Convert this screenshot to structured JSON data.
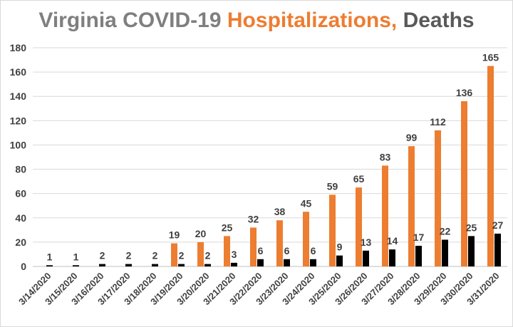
{
  "chart_data": {
    "type": "bar",
    "title_parts": [
      {
        "text": "Virginia COVID-19 ",
        "color": "#7f7f7f"
      },
      {
        "text": "Hospitalizations,",
        "color": "#ed7d31"
      },
      {
        "text": " Deaths",
        "color": "#595959"
      }
    ],
    "categories": [
      "3/14/2020",
      "3/15/2020",
      "3/16/2020",
      "3/17/2020",
      "3/18/2020",
      "3/19/2020",
      "3/20/2020",
      "3/21/2020",
      "3/22/2020",
      "3/23/2020",
      "3/24/2020",
      "3/25/2020",
      "3/26/2020",
      "3/27/2020",
      "3/28/2020",
      "3/29/2020",
      "3/30/2020",
      "3/31/2020"
    ],
    "series": [
      {
        "key": "hospitalizations",
        "color": "#ed7d31",
        "values": [
          0,
          0,
          0,
          0,
          0,
          19,
          20,
          25,
          32,
          38,
          45,
          59,
          65,
          83,
          99,
          112,
          136,
          165
        ],
        "labels": [
          "",
          "",
          "",
          "",
          "",
          "19",
          "20",
          "25",
          "32",
          "38",
          "45",
          "59",
          "65",
          "83",
          "99",
          "112",
          "136",
          "165"
        ]
      },
      {
        "key": "deaths",
        "color": "#000000",
        "values": [
          1,
          1,
          2,
          2,
          2,
          2,
          2,
          3,
          6,
          6,
          6,
          9,
          13,
          14,
          17,
          22,
          25,
          27
        ],
        "labels": [
          "1",
          "1",
          "2",
          "2",
          "2",
          "2",
          "2",
          "3",
          "6",
          "6",
          "6",
          "9",
          "13",
          "14",
          "17",
          "22",
          "25",
          "27"
        ]
      }
    ],
    "ylim": [
      0,
      180
    ],
    "yticks": [
      0,
      20,
      40,
      60,
      80,
      100,
      120,
      140,
      160,
      180
    ],
    "grid": true,
    "legend": "none",
    "xlabel": "",
    "ylabel": ""
  }
}
